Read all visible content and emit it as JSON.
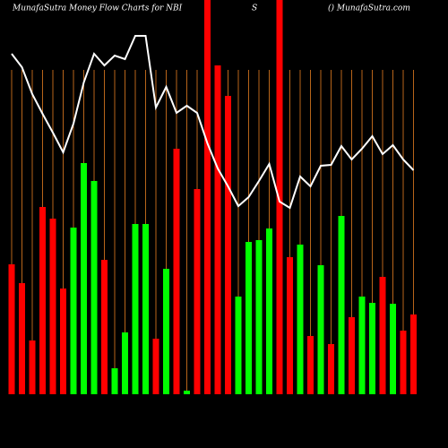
{
  "chart_data": {
    "type": "bar",
    "title": "MunafaSutra  Money Flow  Charts for NBI",
    "subtitle": "S",
    "source": "() MunafaSutra.com",
    "values": [
      145,
      124,
      60,
      209,
      196,
      118,
      186,
      258,
      238,
      150,
      29,
      69,
      190,
      190,
      62,
      140,
      274,
      4,
      229,
      440,
      367,
      333,
      109,
      170,
      172,
      185,
      440,
      153,
      167,
      65,
      144,
      56,
      199,
      86,
      109,
      102,
      131,
      101,
      71,
      89
    ],
    "colors": [
      "#ff0000",
      "#ff0000",
      "#ff0000",
      "#ff0000",
      "#ff0000",
      "#ff0000",
      "#00ff00",
      "#00ff00",
      "#00ff00",
      "#ff0000",
      "#00ff00",
      "#00ff00",
      "#00ff00",
      "#00ff00",
      "#ff0000",
      "#00ff00",
      "#ff0000",
      "#00ff00",
      "#ff0000",
      "#ff0000",
      "#ff0000",
      "#ff0000",
      "#00ff00",
      "#00ff00",
      "#00ff00",
      "#00ff00",
      "#ff0000",
      "#ff0000",
      "#00ff00",
      "#ff0000",
      "#00ff00",
      "#ff0000",
      "#00ff00",
      "#ff0000",
      "#00ff00",
      "#00ff00",
      "#ff0000",
      "#00ff00",
      "#ff0000",
      "#ff0000"
    ],
    "line": {
      "color": "#ffffff",
      "values": [
        380,
        365,
        335,
        313,
        292,
        270,
        302,
        348,
        380,
        367,
        378,
        374,
        400,
        400,
        320,
        343,
        314,
        322,
        314,
        280,
        252,
        232,
        210,
        220,
        238,
        257,
        215,
        208,
        243,
        232,
        255,
        256,
        277,
        262,
        274,
        288,
        268,
        278,
        262,
        250
      ]
    },
    "ylim": [
      0,
      440
    ],
    "grid_color": "#b8651a"
  }
}
